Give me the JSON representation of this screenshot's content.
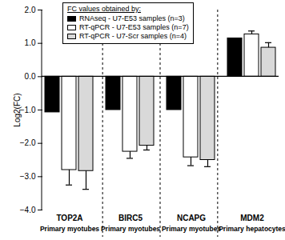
{
  "chart_data": {
    "type": "bar",
    "y_label": "Log2(FC)",
    "legend_title": "FC values obtained by:",
    "categories": [
      "TOP2A",
      "BIRC5",
      "NCAPG",
      "MDM2"
    ],
    "category_notes": [
      "Primary myotubes",
      "Primary myotubes",
      "Primary myotubes",
      "Primary hepatocytes"
    ],
    "series": [
      {
        "name": "RNAseq - U7-E53 samples (n=3)",
        "color": "#000000",
        "values": [
          -1.07,
          -1.0,
          -1.0,
          1.15
        ],
        "errors": [
          null,
          null,
          null,
          null
        ]
      },
      {
        "name": "RT-qPCR - U7-E53 samples (n=7)",
        "color": "#ffffff",
        "values": [
          -2.8,
          -2.25,
          -2.42,
          1.27
        ],
        "errors": [
          0.45,
          0.2,
          0.25,
          0.1
        ]
      },
      {
        "name": "RT-qPCR - U7-Scr samples (n=4)",
        "color": "#d9d9d9",
        "values": [
          -2.83,
          -2.07,
          -2.5,
          0.87
        ],
        "errors": [
          0.55,
          0.13,
          0.2,
          0.15
        ]
      }
    ],
    "ylim": [
      -4,
      2
    ],
    "yticks": [
      -4,
      -3,
      -2,
      -1,
      0,
      1,
      2
    ],
    "legend": "top-left"
  }
}
